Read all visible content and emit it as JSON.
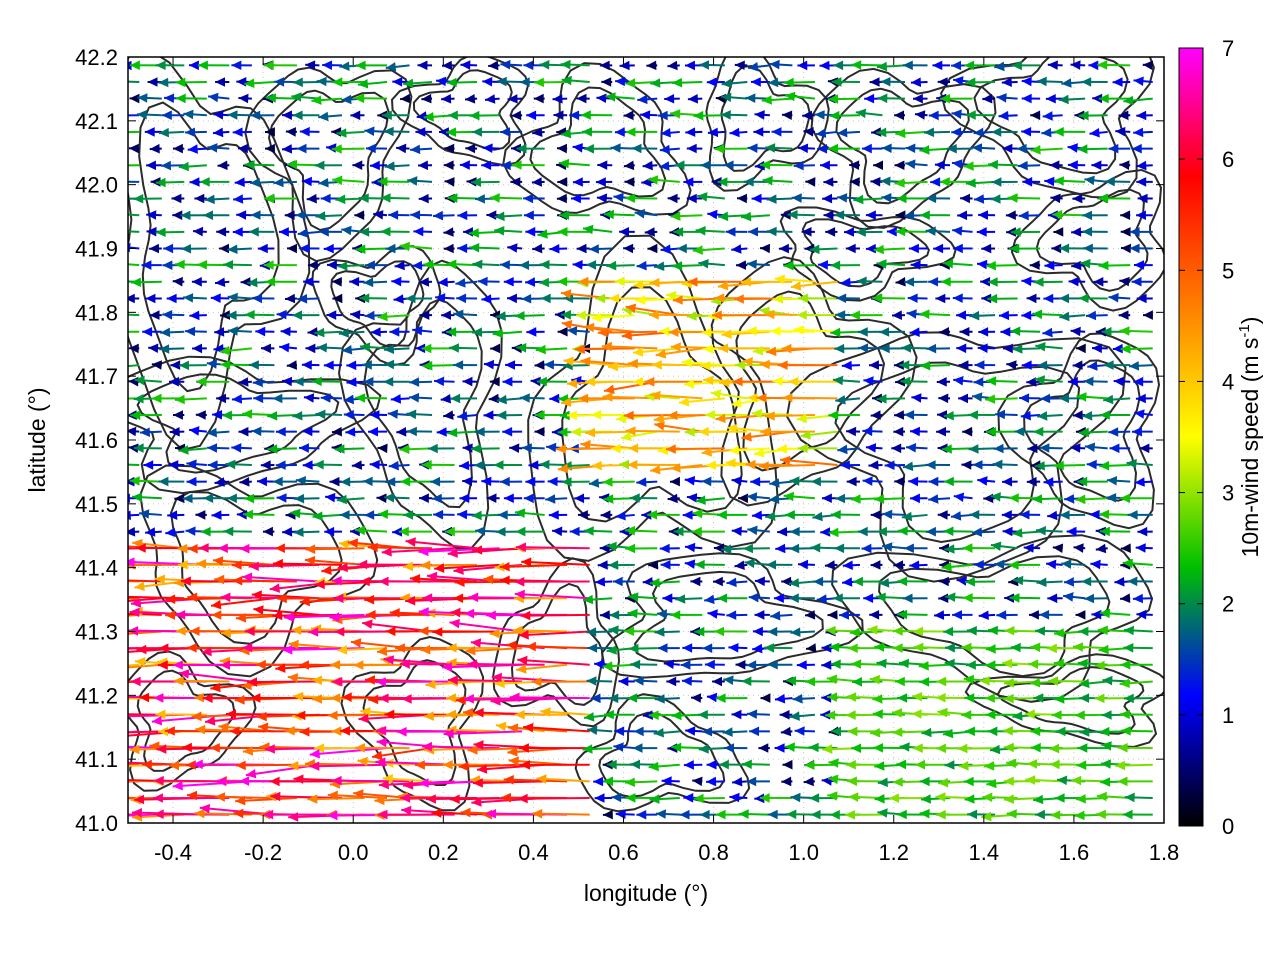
{
  "chart_data": {
    "type": "vector-field",
    "xlabel": "longitude (°)",
    "ylabel": "latitude (°)",
    "xlim": [
      -0.5,
      1.8
    ],
    "ylim": [
      41.0,
      42.2
    ],
    "x_ticks": [
      "-0.4",
      "-0.2",
      "0.0",
      "0.2",
      "0.4",
      "0.6",
      "0.8",
      "1.0",
      "1.2",
      "1.4",
      "1.6",
      "1.8"
    ],
    "x_tick_values": [
      -0.4,
      -0.2,
      0.0,
      0.2,
      0.4,
      0.6,
      0.8,
      1.0,
      1.2,
      1.4,
      1.6,
      1.8
    ],
    "y_ticks": [
      "41.0",
      "41.1",
      "41.2",
      "41.3",
      "41.4",
      "41.5",
      "41.6",
      "41.7",
      "41.8",
      "41.9",
      "42.0",
      "42.1",
      "42.2"
    ],
    "y_tick_values": [
      41.0,
      41.1,
      41.2,
      41.3,
      41.4,
      41.5,
      41.6,
      41.7,
      41.8,
      41.9,
      42.0,
      42.1,
      42.2
    ],
    "colorbar": {
      "label_main": "10m-wind speed (m s",
      "label_sup": "-1",
      "label_end": ")",
      "range": [
        0,
        7
      ],
      "ticks": [
        "0",
        "1",
        "2",
        "3",
        "4",
        "5",
        "6",
        "7"
      ],
      "tick_values": [
        0,
        1,
        2,
        3,
        4,
        5,
        6,
        7
      ],
      "palette": [
        "#000000",
        "#0000ff",
        "#00c000",
        "#ffff00",
        "#ff8000",
        "#ff0000",
        "#ff00ff"
      ]
    },
    "grid": "dotted",
    "contour_color": "#2b2b2b",
    "wind_field": {
      "note_regimes": [
        {
          "lon": [
            -0.5,
            0.55
          ],
          "lat": [
            41.0,
            41.45
          ],
          "speed": [
            4.0,
            7.0
          ],
          "dir_deg": 185
        },
        {
          "lon": [
            0.55,
            1.1
          ],
          "lat": [
            41.55,
            41.85
          ],
          "speed": [
            3.0,
            5.0
          ],
          "dir_deg": 195
        },
        {
          "lon": [
            1.1,
            1.8
          ],
          "lat": [
            41.0,
            41.3
          ],
          "speed": [
            2.0,
            3.0
          ],
          "dir_deg": 180
        },
        {
          "lon": [
            -0.5,
            1.8
          ],
          "lat": [
            41.0,
            42.2
          ],
          "speed": [
            0.3,
            2.5
          ],
          "dir_deg": 180
        }
      ]
    }
  }
}
